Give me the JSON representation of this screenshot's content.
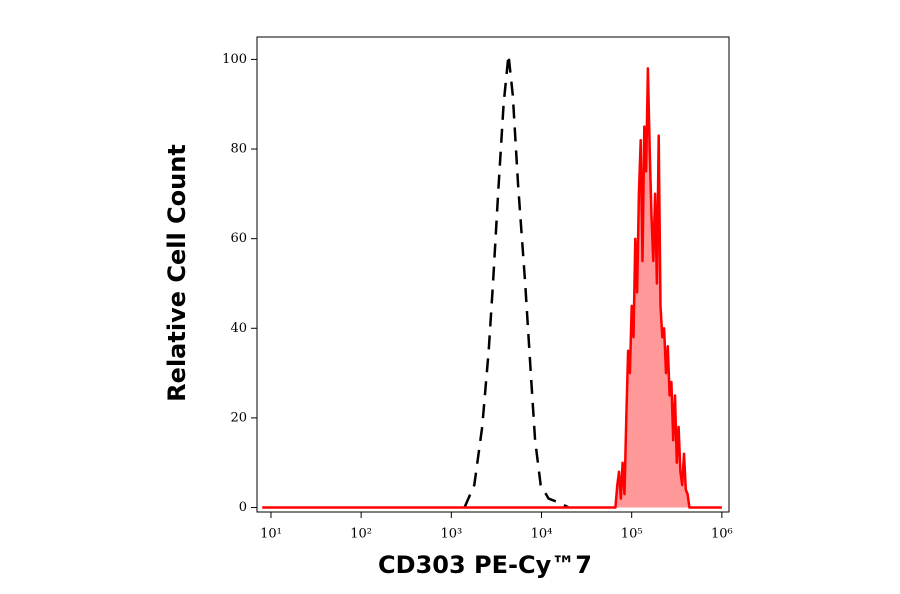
{
  "chart_data": {
    "type": "histogram-overlay",
    "xlabel": "CD303 PE-Cy™7",
    "ylabel": "Relative Cell Count",
    "xscale": "log",
    "xlim": [
      7,
      1200000
    ],
    "ylim": [
      -1,
      105
    ],
    "xticks": [
      {
        "value": 10,
        "label": "10¹"
      },
      {
        "value": 100,
        "label": "10²"
      },
      {
        "value": 1000,
        "label": "10³"
      },
      {
        "value": 10000,
        "label": "10⁴"
      },
      {
        "value": 100000,
        "label": "10⁵"
      },
      {
        "value": 1000000,
        "label": "10⁶"
      }
    ],
    "yticks": [
      0,
      20,
      40,
      60,
      80,
      100
    ],
    "series": [
      {
        "color": "#000000",
        "style": "dashed",
        "x": [
          1400,
          1800,
          2200,
          2600,
          2900,
          3300,
          3800,
          4300,
          4800,
          5500,
          6600,
          7600,
          8500,
          9800,
          12000,
          16000,
          20000
        ],
        "values": [
          0,
          5,
          18,
          35,
          50,
          70,
          90,
          101,
          92,
          72,
          50,
          30,
          15,
          5,
          2,
          1,
          0
        ]
      },
      {
        "color": "#ff0000",
        "fill": "#ff9999",
        "style": "filled",
        "x": [
          8,
          66000,
          69200,
          72400,
          75900,
          79400,
          83200,
          87100,
          91200,
          95500,
          100000,
          104700,
          109600,
          114800,
          120200,
          125900,
          131800,
          138000,
          144500,
          151400,
          158500,
          166000,
          173800,
          182000,
          190500,
          199500,
          208900,
          218800,
          229100,
          239900,
          251200,
          263000,
          275400,
          288400,
          302000,
          316200,
          331100,
          346700,
          363100,
          380200,
          398100,
          416900,
          436500,
          1000000
        ],
        "values": [
          0,
          0,
          5,
          8,
          2,
          10,
          3,
          20,
          35,
          30,
          45,
          38,
          60,
          48,
          70,
          82,
          55,
          85,
          75,
          98,
          80,
          65,
          55,
          70,
          50,
          83,
          45,
          38,
          40,
          30,
          36,
          25,
          28,
          15,
          25,
          10,
          18,
          8,
          5,
          12,
          4,
          3,
          0,
          0
        ]
      }
    ]
  }
}
